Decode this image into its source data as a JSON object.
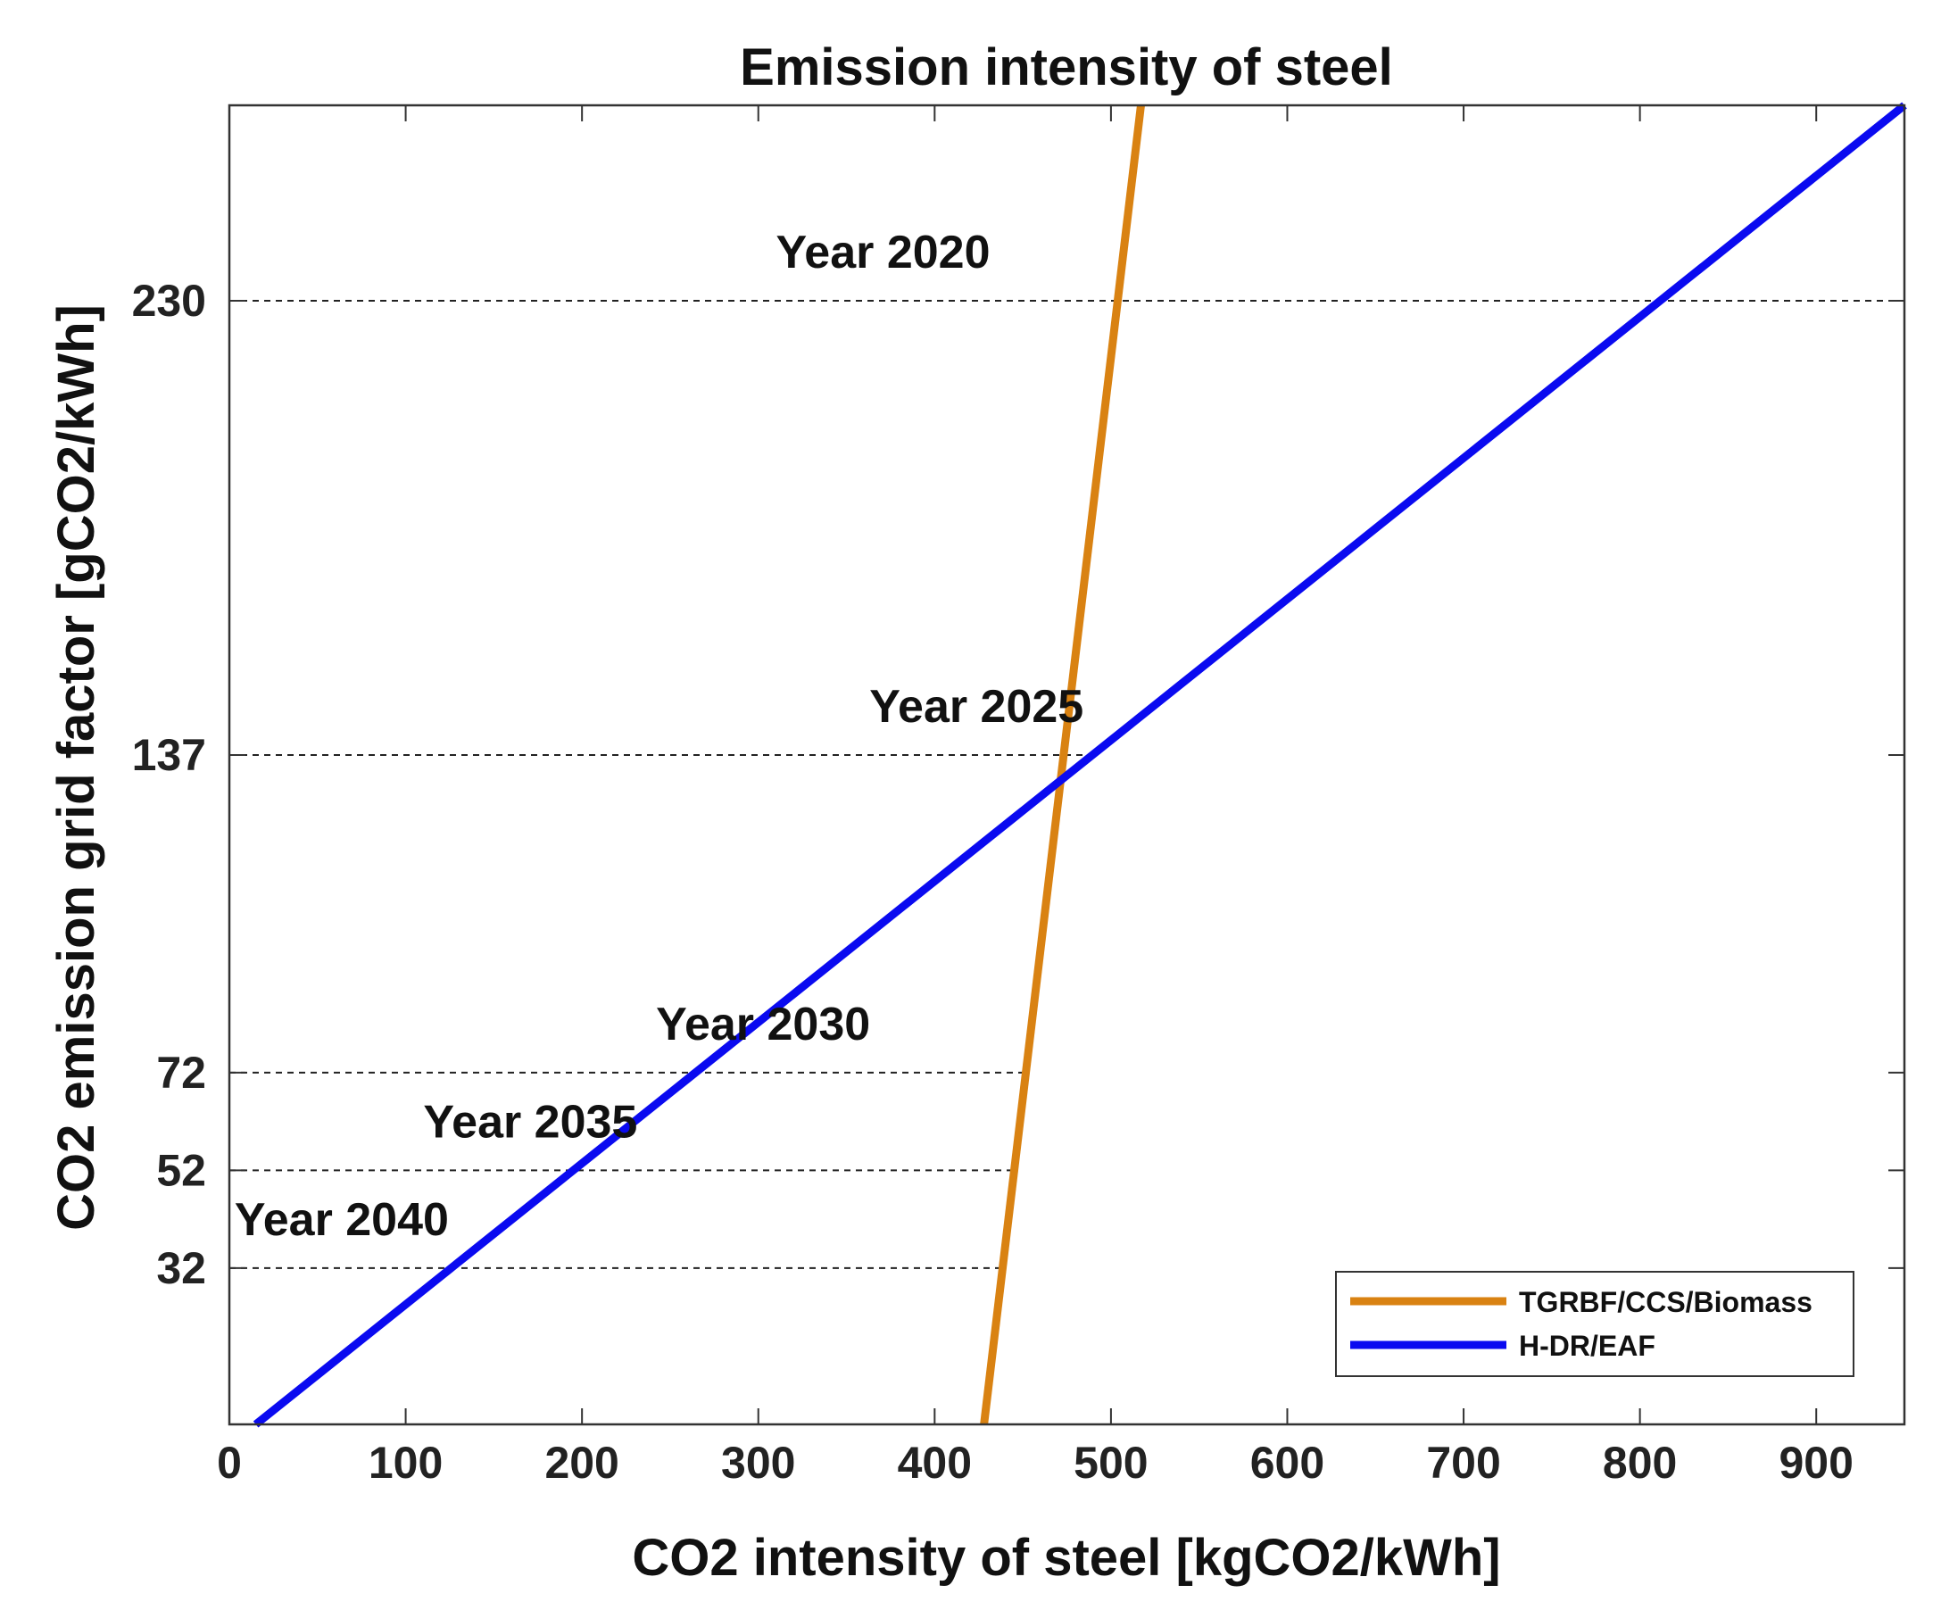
{
  "chart_data": {
    "type": "line",
    "title": "Emission intensity of steel",
    "xlabel": "CO2 intensity of steel [kgCO2/kWh]",
    "ylabel": "CO2 emission grid factor [gCO2/kWh]",
    "xlim": [
      0,
      950
    ],
    "ylim": [
      0,
      270
    ],
    "xticks": [
      0,
      100,
      200,
      300,
      400,
      500,
      600,
      700,
      800,
      900
    ],
    "yticks": [
      32,
      52,
      72,
      137,
      230
    ],
    "grid": false,
    "legend_position": "bottom-right",
    "series": [
      {
        "name": "TGRBF/CCS/Biomass",
        "color": "#D98212",
        "x": [
          428,
          517
        ],
        "y": [
          0,
          270
        ]
      },
      {
        "name": "H-DR/EAF",
        "color": "#0A0AF0",
        "x": [
          15,
          950
        ],
        "y": [
          0,
          270
        ]
      }
    ],
    "reference_lines": [
      {
        "y": 230,
        "x_end": 950,
        "label": "Year 2020",
        "label_x": 310
      },
      {
        "y": 137,
        "x_end": 492,
        "label": "Year 2025",
        "label_x": 363
      },
      {
        "y": 72,
        "x_end": 452,
        "label": "Year 2030",
        "label_x": 242
      },
      {
        "y": 52,
        "x_end": 443,
        "label": "Year 2035",
        "label_x": 110
      },
      {
        "y": 32,
        "x_end": 437,
        "label": "Year 2040",
        "label_x": 3
      }
    ]
  }
}
